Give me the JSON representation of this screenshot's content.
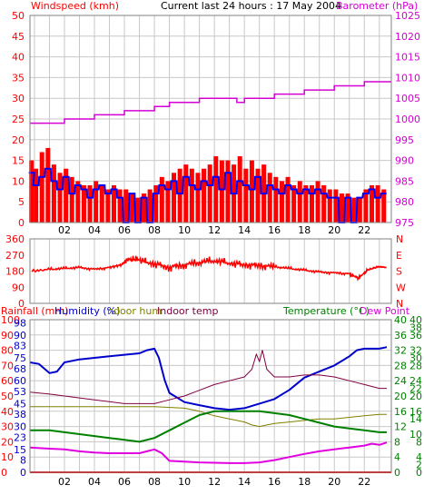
{
  "colors": {
    "windspeed": "#ff0000",
    "gust_line": "#0000ff",
    "barometer": "#d400d4",
    "direction": "#ff0000",
    "rainfall": "#ff0000",
    "humidity": "#0000cc",
    "indoor_hum": "#808000",
    "indoor_temp": "#800040",
    "temperature": "#008000",
    "dew_point": "#e000e0",
    "grid": "#c8c8c8",
    "frame": "#808080"
  },
  "header": {
    "windspeed_label": "Windspeed (kmh)",
    "title": "Current last 24 hours : 17 May 2004",
    "barometer_label": "Barometer (hPa)"
  },
  "bottom_header": {
    "rainfall_label": "Rainfall (mm)",
    "humidity_label": "Humidity (%)",
    "indoor_hum_label": "ndoor hum",
    "indoor_temp_label": "Indoor temp",
    "temperature_label": "Temperature (°C)",
    "dew_point_label": "Dew Point"
  },
  "chart_data": [
    {
      "type": "bar",
      "panel": "wind_baro",
      "x_tick_labels": [
        "02",
        "04",
        "06",
        "08",
        "10",
        "12",
        "14",
        "16",
        "18",
        "20",
        "22"
      ],
      "x_range": [
        -0.3,
        23.8
      ],
      "left_axis": {
        "label": "Windspeed (kmh)",
        "ylim": [
          0,
          50
        ],
        "ticks": [
          0,
          5,
          10,
          15,
          20,
          25,
          30,
          35,
          40,
          45,
          50
        ]
      },
      "right_axis": {
        "label": "Barometer (hPa)",
        "ylim": [
          975,
          1025
        ],
        "ticks": [
          975,
          980,
          985,
          990,
          995,
          1000,
          1005,
          1010,
          1015,
          1020,
          1025
        ]
      },
      "series": [
        {
          "name": "Windspeed (kmh)",
          "kind": "bars",
          "axis": "left",
          "x": [
            -0.2,
            0.1,
            0.5,
            0.9,
            1.3,
            1.7,
            2.1,
            2.5,
            2.9,
            3.3,
            3.7,
            4.1,
            4.5,
            4.9,
            5.3,
            5.7,
            6.1,
            6.5,
            6.9,
            7.3,
            7.7,
            8.1,
            8.5,
            8.9,
            9.3,
            9.7,
            10.1,
            10.5,
            10.9,
            11.3,
            11.7,
            12.1,
            12.5,
            12.9,
            13.3,
            13.7,
            14.1,
            14.5,
            14.9,
            15.3,
            15.7,
            16.1,
            16.5,
            16.9,
            17.3,
            17.7,
            18.1,
            18.5,
            18.9,
            19.3,
            19.7,
            20.1,
            20.5,
            20.9,
            21.3,
            21.7,
            22.1,
            22.5,
            22.9,
            23.3
          ],
          "values": [
            15,
            13,
            17,
            18,
            14,
            12,
            13,
            11,
            10,
            9,
            9,
            10,
            9,
            8,
            9,
            8,
            8,
            7,
            6,
            7,
            8,
            9,
            11,
            10,
            12,
            13,
            14,
            13,
            12,
            13,
            14,
            16,
            15,
            15,
            14,
            16,
            13,
            15,
            13,
            14,
            12,
            11,
            10,
            11,
            9,
            10,
            9,
            9,
            10,
            9,
            8,
            8,
            7,
            7,
            6,
            6,
            8,
            9,
            9,
            8
          ]
        },
        {
          "name": "",
          "kind": "line",
          "axis": "left",
          "x": [
            -0.2,
            0.1,
            0.5,
            0.9,
            1.3,
            1.7,
            2.1,
            2.5,
            2.9,
            3.3,
            3.7,
            4.1,
            4.5,
            4.9,
            5.3,
            5.7,
            6.1,
            6.5,
            6.9,
            7.3,
            7.7,
            8.1,
            8.5,
            8.9,
            9.3,
            9.7,
            10.1,
            10.5,
            10.9,
            11.3,
            11.7,
            12.1,
            12.5,
            12.9,
            13.3,
            13.7,
            14.1,
            14.5,
            14.9,
            15.3,
            15.7,
            16.1,
            16.5,
            16.9,
            17.3,
            17.7,
            18.1,
            18.5,
            18.9,
            19.3,
            19.7,
            20.1,
            20.5,
            20.9,
            21.3,
            21.7,
            22.1,
            22.5,
            22.9,
            23.3
          ],
          "values": [
            12,
            9,
            11,
            13,
            10,
            8,
            11,
            7,
            9,
            8,
            6,
            8,
            9,
            7,
            8,
            6,
            0,
            7,
            0,
            6,
            0,
            7,
            9,
            8,
            10,
            7,
            11,
            9,
            8,
            10,
            9,
            11,
            8,
            12,
            7,
            10,
            9,
            8,
            11,
            7,
            9,
            8,
            7,
            9,
            8,
            7,
            8,
            7,
            8,
            7,
            6,
            6,
            0,
            6,
            0,
            6,
            7,
            8,
            6,
            7
          ]
        },
        {
          "name": "Barometer (hPa)",
          "kind": "line",
          "axis": "right",
          "x": [
            -0.3,
            1.0,
            2.0,
            3.0,
            4.0,
            5.0,
            6.0,
            7.0,
            8.0,
            9.0,
            10.0,
            11.0,
            12.0,
            13.0,
            13.5,
            14.0,
            15.0,
            16.0,
            17.0,
            18.0,
            19.0,
            20.0,
            21.0,
            22.0,
            23.0,
            23.8
          ],
          "values": [
            999,
            999,
            1000,
            1000,
            1001,
            1001,
            1002,
            1002,
            1003,
            1004,
            1004,
            1005,
            1005,
            1005,
            1004,
            1005,
            1005,
            1006,
            1006,
            1007,
            1007,
            1008,
            1008,
            1009,
            1009,
            1009
          ]
        }
      ]
    },
    {
      "type": "line",
      "panel": "direction",
      "x_range": [
        -0.3,
        23.8
      ],
      "left_axis": {
        "ylim": [
          0,
          360
        ],
        "ticks": [
          0,
          90,
          180,
          270,
          360
        ]
      },
      "right_axis": {
        "ticks": [
          "N",
          "E",
          "S",
          "W",
          "N"
        ]
      },
      "series": [
        {
          "name": "",
          "axis": "left",
          "x": [
            -0.2,
            1.0,
            2.0,
            3.0,
            4.0,
            5.0,
            5.8,
            6.3,
            7.0,
            8.0,
            9.0,
            10.0,
            11.0,
            12.0,
            13.0,
            14.0,
            15.0,
            16.0,
            17.0,
            18.0,
            19.0,
            20.0,
            21.0,
            21.6,
            22.2,
            23.0,
            23.5
          ],
          "values": [
            180,
            190,
            195,
            200,
            190,
            200,
            215,
            250,
            240,
            220,
            200,
            215,
            230,
            240,
            225,
            215,
            210,
            205,
            195,
            185,
            175,
            170,
            165,
            140,
            185,
            205,
            200
          ]
        }
      ]
    },
    {
      "type": "line",
      "panel": "temp_hum",
      "x_range": [
        -0.3,
        23.8
      ],
      "left_axis_outer": {
        "label": "Rainfall (mm)",
        "ylim": [
          0,
          100
        ],
        "ticks": [
          0,
          10,
          20,
          30,
          40,
          50,
          60,
          70,
          80,
          90,
          100
        ]
      },
      "left_axis_inner": {
        "label": "Humidity (%)",
        "ticks": [
          0,
          8,
          15,
          23,
          30,
          38,
          45,
          53,
          60,
          68,
          75,
          83,
          90,
          98
        ]
      },
      "right_axis_inner": {
        "label": "Temperature (°C)",
        "ylim": [
          0,
          40
        ],
        "ticks": [
          0,
          4,
          8,
          12,
          16,
          20,
          24,
          28,
          32,
          36,
          40
        ]
      },
      "right_axis_outer": {
        "label": "Dew Point",
        "ticks": [
          0,
          2,
          4,
          8,
          10,
          14,
          16,
          20,
          22,
          24,
          28,
          30,
          32,
          36,
          38,
          40
        ]
      },
      "series": [
        {
          "name": "Humidity (%)",
          "axis": "left",
          "x": [
            -0.3,
            0.3,
            1.0,
            1.5,
            2.0,
            3.0,
            4.0,
            5.0,
            6.0,
            7.0,
            7.5,
            8.0,
            8.3,
            8.7,
            9.0,
            10.0,
            11.0,
            12.0,
            13.0,
            14.0,
            15.0,
            16.0,
            16.5,
            17.0,
            18.0,
            19.0,
            20.0,
            20.5,
            21.0,
            21.5,
            22.0,
            23.0,
            23.5
          ],
          "values": [
            72,
            71,
            65,
            66,
            72,
            74,
            75,
            76,
            77,
            78,
            80,
            81,
            75,
            60,
            52,
            46,
            44,
            42,
            41,
            42,
            45,
            48,
            51,
            54,
            62,
            66,
            70,
            73,
            76,
            80,
            81,
            81,
            82
          ]
        },
        {
          "name": "ndoor hum",
          "axis": "left",
          "x": [
            -0.3,
            2.0,
            4.0,
            6.0,
            8.0,
            10.0,
            11.0,
            12.0,
            13.0,
            14.0,
            14.5,
            15.0,
            15.5,
            16.0,
            17.0,
            18.0,
            19.0,
            20.0,
            21.0,
            22.0,
            23.0,
            23.5
          ],
          "values": [
            43,
            43,
            43,
            43,
            43,
            42,
            40,
            37,
            35,
            33,
            31,
            30,
            31,
            32,
            33,
            34,
            35,
            35,
            36,
            37,
            38,
            38
          ]
        },
        {
          "name": "Indoor temp",
          "axis": "right",
          "x": [
            -0.3,
            1.0,
            2.0,
            3.0,
            4.0,
            5.0,
            6.0,
            7.0,
            8.0,
            9.0,
            10.0,
            11.0,
            12.0,
            13.0,
            14.0,
            14.5,
            14.8,
            15.0,
            15.2,
            15.5,
            16.0,
            17.0,
            18.0,
            19.0,
            20.0,
            21.0,
            22.0,
            23.0,
            23.5
          ],
          "values": [
            21,
            20.5,
            20,
            19.5,
            19,
            18.5,
            18,
            18,
            18,
            19,
            20,
            21.5,
            23,
            24,
            25,
            27,
            31,
            29,
            32,
            27,
            25,
            25,
            25.5,
            25.5,
            25,
            24,
            23,
            22,
            22
          ]
        },
        {
          "name": "Temperature (°C)",
          "axis": "right",
          "x": [
            -0.3,
            1.0,
            2.0,
            3.0,
            4.0,
            5.0,
            6.0,
            7.0,
            8.0,
            9.0,
            10.0,
            11.0,
            12.0,
            13.0,
            14.0,
            15.0,
            16.0,
            17.0,
            18.0,
            19.0,
            20.0,
            21.0,
            22.0,
            23.0,
            23.5
          ],
          "values": [
            11,
            11,
            10.5,
            10,
            9.5,
            9,
            8.5,
            8,
            9,
            11,
            13,
            15,
            16,
            16,
            16,
            16,
            15.5,
            15,
            14,
            13,
            12,
            11.5,
            11,
            10.5,
            10.5
          ]
        },
        {
          "name": "Dew Point",
          "axis": "right",
          "x": [
            -0.3,
            1.0,
            2.0,
            3.0,
            4.0,
            5.0,
            6.0,
            7.0,
            7.5,
            8.0,
            8.5,
            9.0,
            10.0,
            11.0,
            12.0,
            13.0,
            14.0,
            15.0,
            16.0,
            17.0,
            18.0,
            19.0,
            20.0,
            21.0,
            22.0,
            22.5,
            23.0,
            23.5
          ],
          "values": [
            6.5,
            6.2,
            6,
            5.5,
            5.2,
            5,
            5,
            5,
            5.5,
            6,
            5,
            3,
            2.8,
            2.6,
            2.5,
            2.4,
            2.4,
            2.6,
            3.2,
            4,
            4.8,
            5.5,
            6,
            6.5,
            7,
            7.5,
            7.2,
            7.8
          ]
        },
        {
          "name": "Rainfall (mm)",
          "axis": "left",
          "x": [
            -0.3,
            23.8
          ],
          "values": [
            0,
            0
          ]
        }
      ]
    }
  ]
}
